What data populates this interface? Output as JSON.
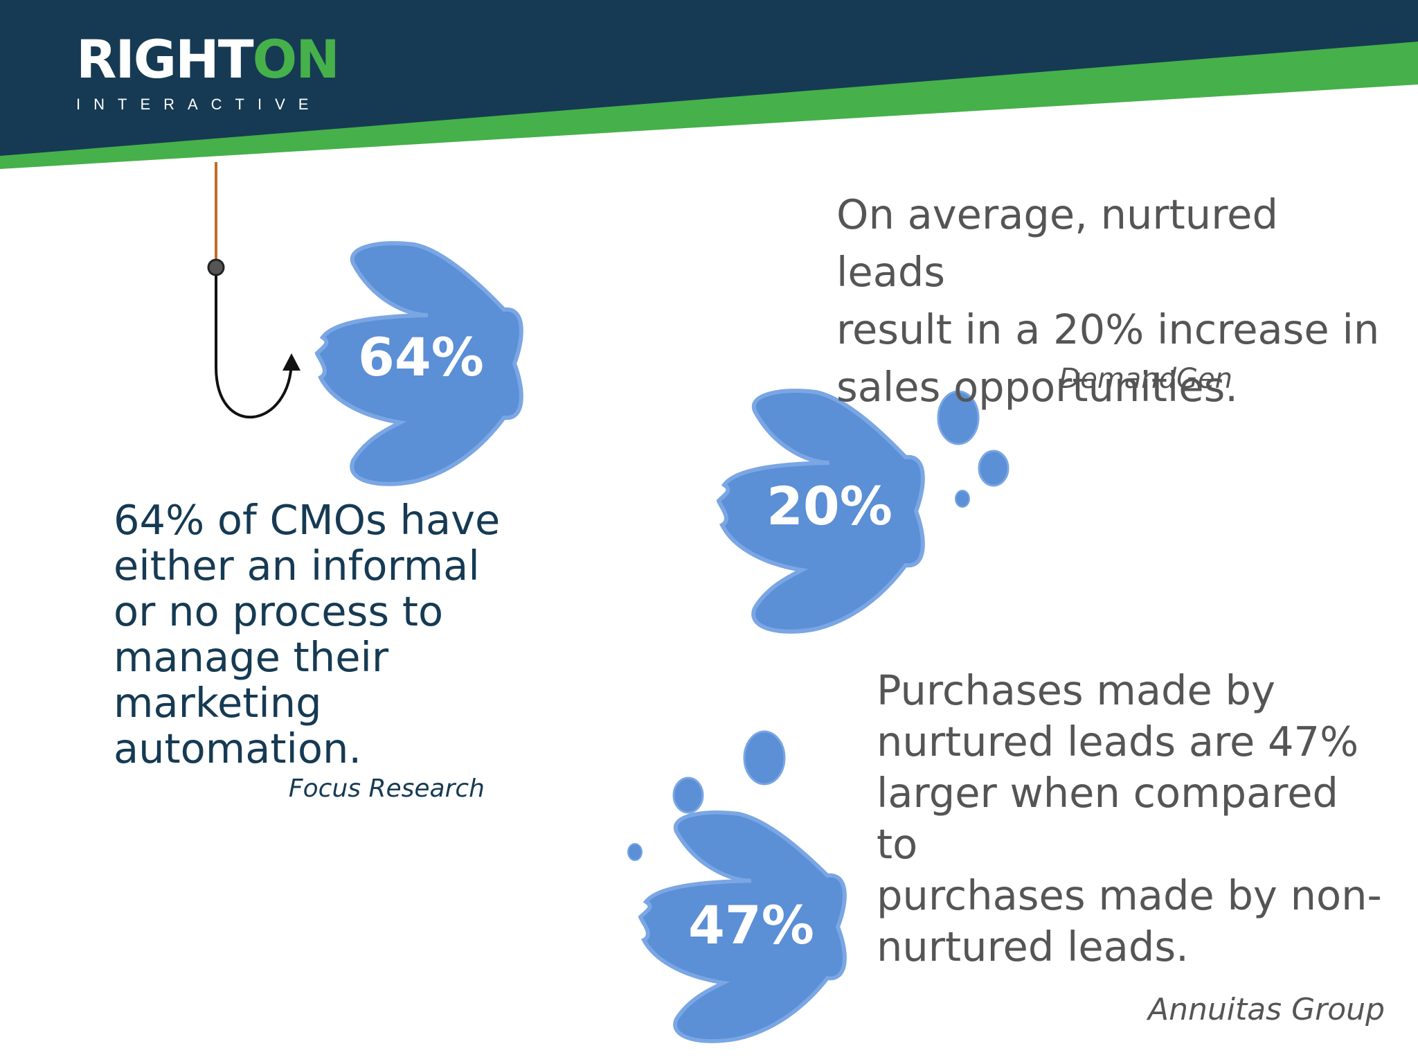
{
  "brand": {
    "name_part1": "RIGHT",
    "name_part2": "ON",
    "tagline": "INTERACTIVE",
    "colors": {
      "navy": "#163a53",
      "green": "#46b04a",
      "fish_blue": "#5b8fd6"
    }
  },
  "stats": [
    {
      "value_label": "64%",
      "text": "64% of CMOs have either an informal or no process to manage their marketing automation.",
      "text_lines": [
        "64% of CMOs have",
        "either an informal",
        "or no process to",
        "manage their",
        "marketing",
        "automation."
      ],
      "source": "Focus Research"
    },
    {
      "value_label": "20%",
      "text": "On average, nurtured leads result in a 20% increase in sales opportunities.",
      "text_lines": [
        "On average, nurtured leads",
        "result in a 20% increase in",
        "sales opportunities."
      ],
      "source": "DemandGen"
    },
    {
      "value_label": "47%",
      "text": "Purchases made by nurtured leads are 47% larger when compared to purchases made by non-nurtured leads.",
      "text_lines": [
        "Purchases made by",
        "nurtured leads are 47%",
        "larger when compared to",
        "purchases made by non-",
        "nurtured leads."
      ],
      "source": "Annuitas Group"
    }
  ]
}
